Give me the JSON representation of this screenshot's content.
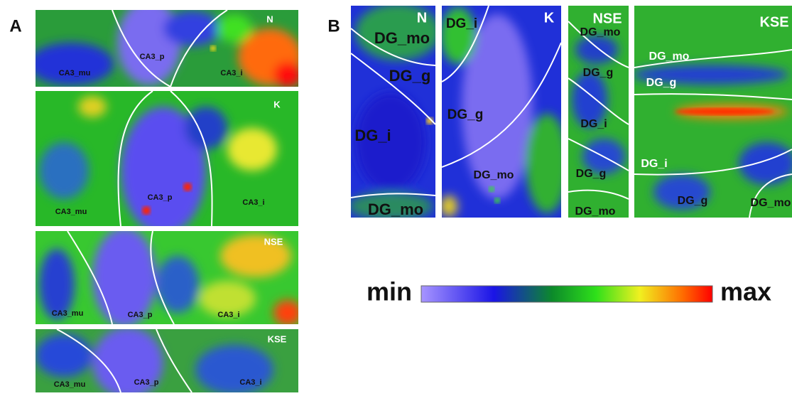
{
  "panel_a": {
    "label": "A",
    "maps": [
      {
        "name": "N",
        "regions": [
          "CA3_p",
          "CA3_mu",
          "CA3_i"
        ]
      },
      {
        "name": "K",
        "regions": [
          "CA3_p",
          "CA3_mu",
          "CA3_i"
        ]
      },
      {
        "name": "NSE",
        "regions": [
          "CA3_mu",
          "CA3_p",
          "CA3_i"
        ]
      },
      {
        "name": "KSE",
        "regions": [
          "CA3_mu",
          "CA3_p",
          "CA3_i"
        ]
      }
    ]
  },
  "panel_b": {
    "label": "B",
    "maps": [
      {
        "name": "N",
        "regions": [
          "DG_mo",
          "DG_g",
          "DG_i",
          "DG_mo"
        ]
      },
      {
        "name": "K",
        "regions": [
          "DG_i",
          "DG_g",
          "DG_mo"
        ]
      },
      {
        "name": "NSE",
        "regions": [
          "DG_mo",
          "DG_g",
          "DG_i",
          "DG_g",
          "DG_mo"
        ]
      },
      {
        "name": "KSE",
        "regions": [
          "DG_mo",
          "DG_g",
          "DG_i",
          "DG_g",
          "DG_mo"
        ]
      }
    ]
  },
  "colorbar": {
    "min": "min",
    "max": "max"
  }
}
